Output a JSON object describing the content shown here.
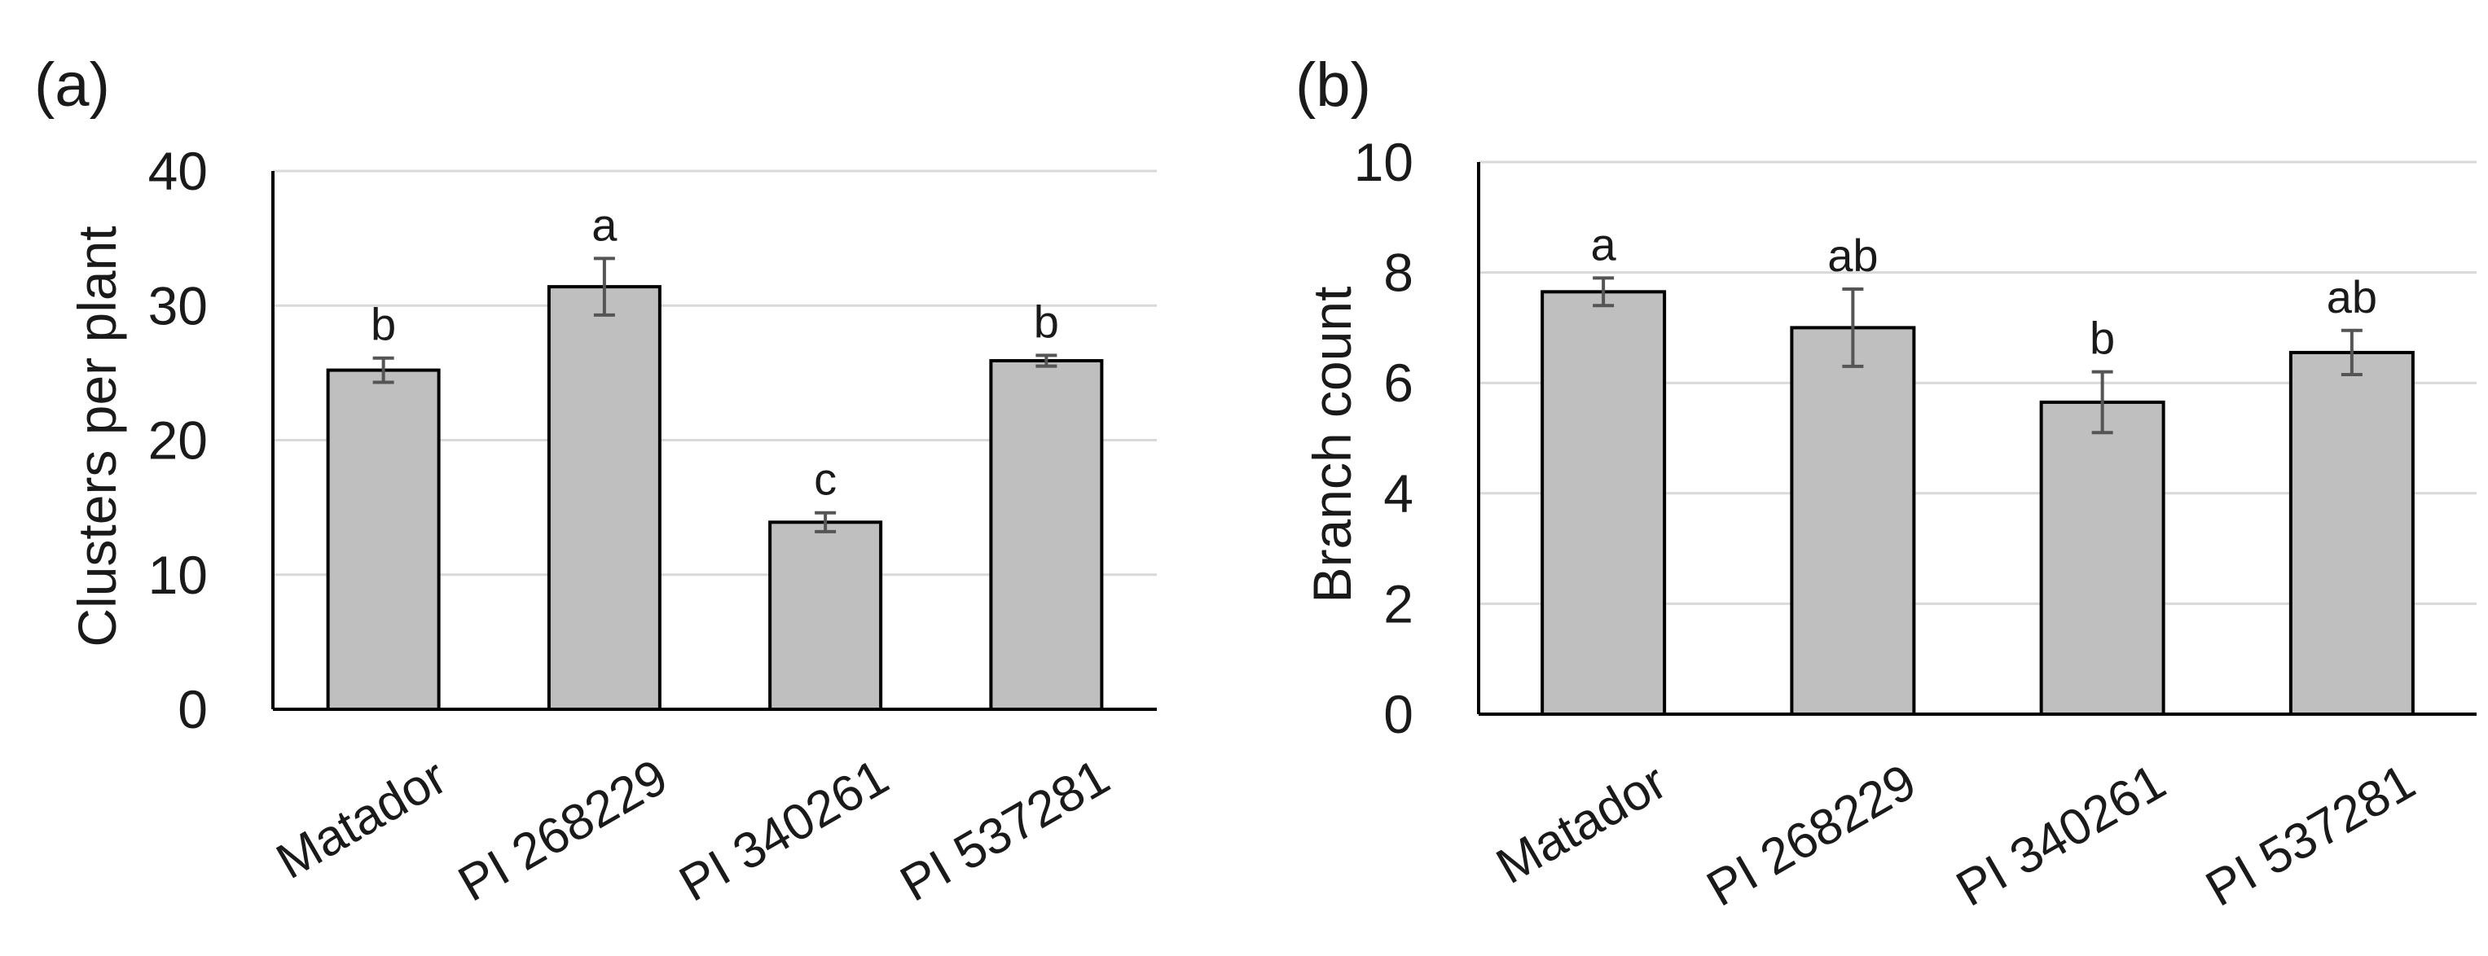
{
  "chart_data": [
    {
      "panel_label": "(a)",
      "type": "bar",
      "categories": [
        "Matador",
        "PI 268229",
        "PI 340261",
        "PI 537281"
      ],
      "values": [
        25.2,
        31.4,
        13.9,
        25.9
      ],
      "errors": [
        0.9,
        2.1,
        0.7,
        0.4
      ],
      "significance": [
        "b",
        "a",
        "c",
        "b"
      ],
      "ylabel": "Clusters per plant",
      "xlabel": "",
      "ylim": [
        0,
        40
      ],
      "yticks": [
        "0",
        "10",
        "20",
        "30",
        "40"
      ],
      "grid": true,
      "colors": {
        "bar": "#bfbfbf",
        "error": "#555555",
        "grid": "#d9d9d9"
      }
    },
    {
      "panel_label": "(b)",
      "type": "bar",
      "categories": [
        "Matador",
        "PI 268229",
        "PI 340261",
        "PI 537281"
      ],
      "values": [
        7.65,
        7.0,
        5.65,
        6.55
      ],
      "errors": [
        0.25,
        0.7,
        0.55,
        0.4
      ],
      "significance": [
        "a",
        "ab",
        "b",
        "ab"
      ],
      "ylabel": "Branch count",
      "xlabel": "",
      "ylim": [
        0,
        10
      ],
      "yticks": [
        "0",
        "2",
        "4",
        "6",
        "8",
        "10"
      ],
      "grid": true,
      "colors": {
        "bar": "#bfbfbf",
        "error": "#555555",
        "grid": "#d9d9d9"
      }
    }
  ]
}
